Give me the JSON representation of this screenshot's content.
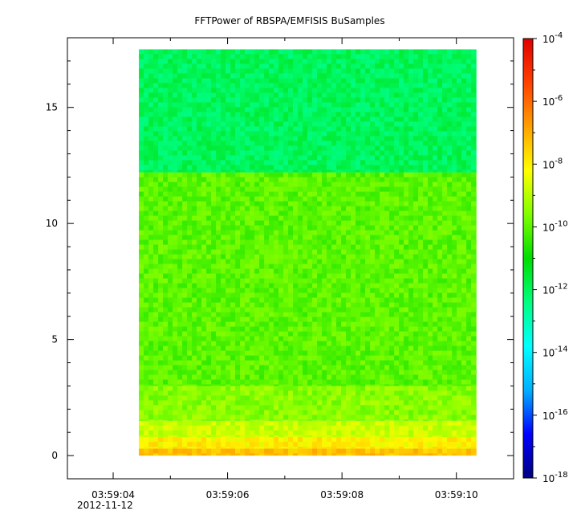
{
  "chart_data": {
    "type": "heatmap",
    "title": "FFTPower of RBSPA/EMFISIS  BuSamples",
    "xlabel": "",
    "ylabel": "",
    "x_axis": {
      "type": "time",
      "date_label": "2012-11-12",
      "range": [
        "03:59:03.2",
        "03:59:11.0"
      ],
      "major_ticks": [
        "03:59:04",
        "03:59:06",
        "03:59:08",
        "03:59:10"
      ],
      "minor_ticks": [
        "03:59:05",
        "03:59:07",
        "03:59:09",
        "03:59:11"
      ]
    },
    "y_axis": {
      "range": [
        -1,
        18
      ],
      "ticks": [
        0,
        5,
        10,
        15
      ]
    },
    "data_extent": {
      "x": [
        "03:59:04.45",
        "03:59:10.35"
      ],
      "y": [
        0,
        17.5
      ]
    },
    "z_axis": {
      "scale": "log",
      "range": [
        1e-18,
        0.0001
      ],
      "tick_exponents": [
        -18,
        -16,
        -14,
        -12,
        -10,
        -8,
        -6,
        -4
      ],
      "tick_base": "10",
      "colormap": [
        "#000080",
        "#0000ff",
        "#00b0ff",
        "#00ffff",
        "#00ff80",
        "#00dd00",
        "#80ff00",
        "#ffff00",
        "#ffa000",
        "#ff4000",
        "#e00000"
      ]
    },
    "spectrogram_bands": [
      {
        "y_range": [
          0,
          0.3
        ],
        "log10_power": -7.3
      },
      {
        "y_range": [
          0.3,
          0.8
        ],
        "log10_power": -8.0
      },
      {
        "y_range": [
          0.8,
          1.5
        ],
        "log10_power": -8.8
      },
      {
        "y_range": [
          1.5,
          3.0
        ],
        "log10_power": -9.5
      },
      {
        "y_range": [
          3.0,
          12.2
        ],
        "log10_power": -10.0
      },
      {
        "y_range": [
          12.2,
          17.5
        ],
        "log10_power": -12.0
      }
    ],
    "grid": false,
    "legend": "colorbar-right"
  }
}
